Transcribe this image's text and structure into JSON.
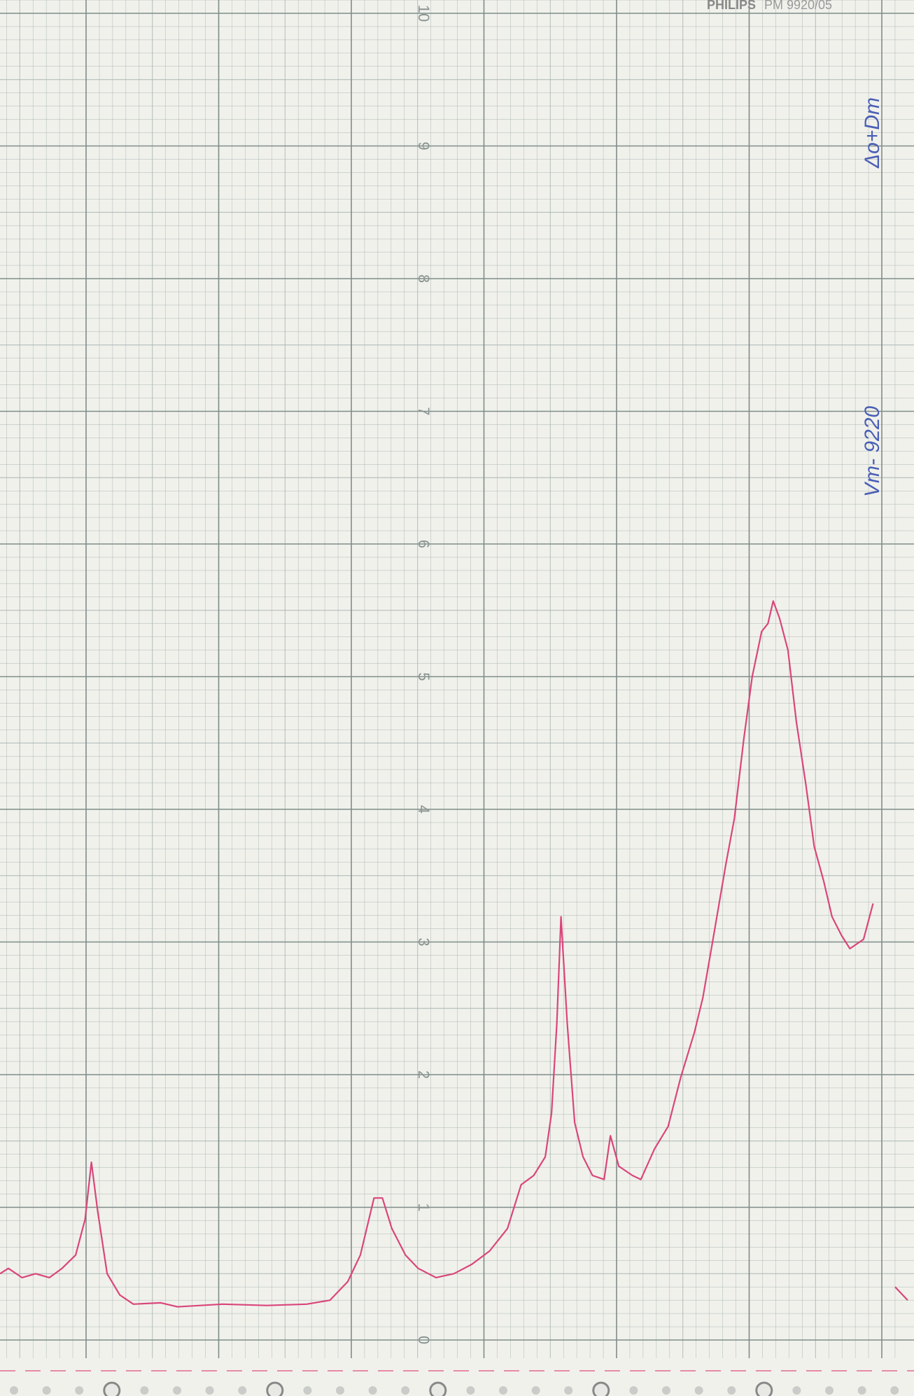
{
  "chart_data": {
    "type": "line",
    "brand": "PHILIPS",
    "model": "PM 9920/05",
    "annotations": [
      "Vm- 9220",
      "Δo+Dm"
    ],
    "x": [
      0,
      0.8,
      2.1,
      3.4,
      4.7,
      5.9,
      7.2,
      8.1,
      8.7,
      9.3,
      10.2,
      11.4,
      12.7,
      15.3,
      16.9,
      21.2,
      25.4,
      29.2,
      31.4,
      33.1,
      34.3,
      35.6,
      36.4,
      37.3,
      38.6,
      39.8,
      41.5,
      43.2,
      44.9,
      46.6,
      48.3,
      49.6,
      50.8,
      51.9,
      52.5,
      53.0,
      53.4,
      54.0,
      54.7,
      55.5,
      56.4,
      57.5,
      58.1,
      58.9,
      60.2,
      61.0,
      62.3,
      63.6,
      64.8,
      66.1,
      66.9,
      67.8,
      69.1,
      69.9,
      70.8,
      71.6,
      72.5,
      73.1,
      73.6,
      74.2,
      75.0,
      75.8,
      76.7,
      77.5,
      78.4,
      79.2,
      80.1,
      80.9,
      82.2,
      83.1,
      84.0,
      85.2,
      86.4
    ],
    "series": [
      {
        "color": "#d9467a",
        "values": [
          0.5,
          0.54,
          0.47,
          0.5,
          0.47,
          0.54,
          0.64,
          0.91,
          1.34,
          0.97,
          0.5,
          0.34,
          0.27,
          0.28,
          0.25,
          0.27,
          0.26,
          0.27,
          0.3,
          0.44,
          0.64,
          1.07,
          1.07,
          0.84,
          0.64,
          0.54,
          0.47,
          0.5,
          0.57,
          0.67,
          0.84,
          1.17,
          1.24,
          1.38,
          1.71,
          2.38,
          3.19,
          2.38,
          1.64,
          1.38,
          1.24,
          1.21,
          1.54,
          1.31,
          1.24,
          1.21,
          1.44,
          1.61,
          1.98,
          2.32,
          2.58,
          2.99,
          3.59,
          3.93,
          4.53,
          5.0,
          5.34,
          5.4,
          5.57,
          5.44,
          5.2,
          4.66,
          4.19,
          3.72,
          3.46,
          3.19,
          3.05,
          2.95,
          3.02,
          3.29,
          null,
          0.4,
          0.3
        ]
      }
    ],
    "xlim": [
      0,
      87.0
    ],
    "ylim": [
      0,
      10
    ],
    "yticks": [
      0,
      1,
      2,
      3,
      4,
      5,
      6,
      7,
      8,
      9,
      10
    ],
    "grid": true
  }
}
